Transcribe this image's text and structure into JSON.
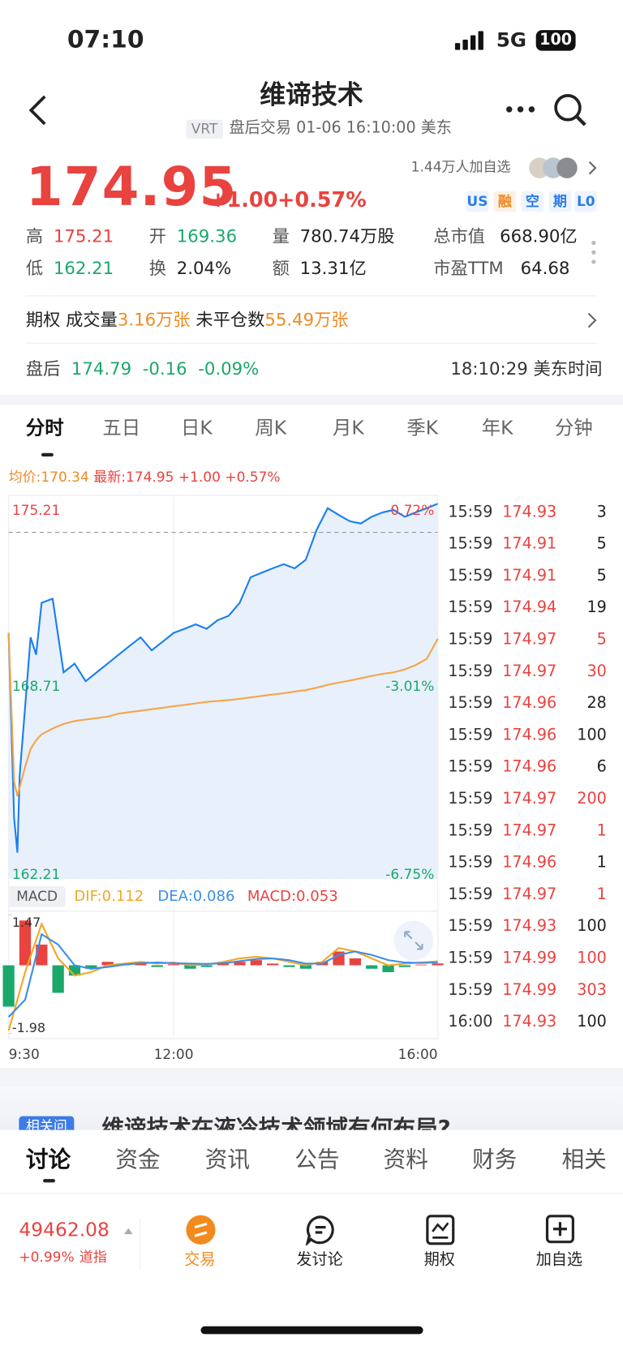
{
  "status": {
    "time": "07:10",
    "network": "5G",
    "battery": "100"
  },
  "header": {
    "title": "维谛技术",
    "ticker": "VRT",
    "subtitle": "盘后交易 01-06 16:10:00 美东"
  },
  "quote": {
    "price": "174.95",
    "change": "+1.00",
    "pct": "+0.57%",
    "watchers": "1.44万人加自选",
    "tags": [
      "US",
      "融",
      "空",
      "期",
      "L0"
    ]
  },
  "stats": [
    {
      "label": "高",
      "value": "175.21",
      "color": "#e8433f"
    },
    {
      "label": "开",
      "value": "169.36",
      "color": "#1aa86a"
    },
    {
      "label": "量",
      "value": "780.74万股",
      "color": "#222222"
    },
    {
      "label": "总市值",
      "value": "668.90亿",
      "color": "#222222"
    },
    {
      "label": "低",
      "value": "162.21",
      "color": "#1aa86a"
    },
    {
      "label": "换",
      "value": "2.04%",
      "color": "#222222"
    },
    {
      "label": "额",
      "value": "13.31亿",
      "color": "#222222"
    },
    {
      "label": "市盈TTM",
      "value": "64.68",
      "color": "#222222"
    }
  ],
  "options": {
    "label": "期权",
    "volume_label": "成交量",
    "volume": "3.16万张",
    "open_interest_label": "未平仓数",
    "open_interest": "55.49万张"
  },
  "after_hours": {
    "label": "盘后",
    "price": "174.79",
    "change": "-0.16",
    "pct": "-0.09%",
    "time": "18:10:29 美东时间"
  },
  "tabs": [
    "分时",
    "五日",
    "日K",
    "周K",
    "月K",
    "季K",
    "年K",
    "分钟"
  ],
  "chart_data": [
    {
      "type": "line",
      "header": {
        "avg": "均价:170.34",
        "latest": "最新:174.95",
        "change": "+1.00",
        "pct": "+0.57%"
      },
      "x": [
        0,
        5,
        8,
        10,
        15,
        20,
        25,
        30,
        40,
        50,
        60,
        70,
        80,
        90,
        100,
        110,
        120,
        130,
        140,
        150,
        160,
        170,
        180,
        190,
        200,
        210,
        220,
        230,
        240,
        250,
        260,
        270,
        280,
        290,
        300,
        310,
        320,
        330,
        340,
        350,
        360,
        370,
        380,
        390
      ],
      "xlim": [
        0,
        390
      ],
      "xticks": [
        {
          "value": 0,
          "label": "9:30"
        },
        {
          "value": 150,
          "label": "12:00"
        },
        {
          "value": 390,
          "label": "16:00"
        }
      ],
      "ylim": [
        162.21,
        175.21
      ],
      "yticks": [
        162.21,
        168.71,
        175.21
      ],
      "y2lim": [
        -6.75,
        0.72
      ],
      "y2ticks": [
        {
          "value": -6.75,
          "label": "-6.75%"
        },
        {
          "value": -3.01,
          "label": "-3.01%"
        },
        {
          "value": 0.72,
          "label": "0.72%"
        }
      ],
      "reference_line": 173.95,
      "grid": true,
      "series": [
        {
          "color": "#1a7ff0",
          "values": [
            170.54,
            164.26,
            163.09,
            165.7,
            168.05,
            170.39,
            169.8,
            171.56,
            171.7,
            169.2,
            169.5,
            168.9,
            169.2,
            169.5,
            169.8,
            170.1,
            170.39,
            169.95,
            170.24,
            170.54,
            170.68,
            170.83,
            170.68,
            170.97,
            171.12,
            171.56,
            172.43,
            172.58,
            172.73,
            172.87,
            172.73,
            173.02,
            174.04,
            174.77,
            174.54,
            174.33,
            174.25,
            174.48,
            174.63,
            174.71,
            174.48,
            174.63,
            174.77,
            174.92
          ]
        },
        {
          "color": "#f5a54a",
          "values": [
            170.54,
            165.5,
            165.0,
            165.3,
            166.0,
            166.6,
            166.9,
            167.1,
            167.3,
            167.45,
            167.55,
            167.6,
            167.65,
            167.7,
            167.8,
            167.85,
            167.9,
            167.95,
            168.0,
            168.05,
            168.1,
            168.15,
            168.2,
            168.23,
            168.26,
            168.3,
            168.35,
            168.4,
            168.45,
            168.49,
            168.55,
            168.6,
            168.68,
            168.78,
            168.85,
            168.92,
            169.0,
            169.08,
            169.15,
            169.2,
            169.3,
            169.45,
            169.66,
            170.34
          ]
        }
      ]
    },
    {
      "type": "macd",
      "header": {
        "label": "MACD",
        "dif": "DIF:0.112",
        "dea": "DEA:0.086",
        "macd": "MACD:0.053"
      },
      "x": [
        0,
        15,
        30,
        45,
        60,
        75,
        90,
        105,
        120,
        135,
        150,
        165,
        180,
        195,
        210,
        225,
        240,
        255,
        270,
        285,
        300,
        315,
        330,
        345,
        360,
        375,
        390
      ],
      "xlim": [
        0,
        390
      ],
      "ylim": [
        -1.98,
        1.47
      ],
      "yticks": [
        -1.98,
        1.47
      ],
      "bars": {
        "up_color": "#e8433f",
        "down_color": "#1aa86a",
        "values": [
          -1.2,
          1.3,
          0.6,
          -0.8,
          -0.3,
          -0.1,
          0.1,
          0.05,
          0.08,
          -0.05,
          0.03,
          -0.1,
          -0.05,
          0.05,
          0.1,
          0.15,
          0.05,
          -0.05,
          -0.1,
          0.1,
          0.4,
          0.2,
          -0.1,
          -0.2,
          -0.05,
          0.02,
          0.053
        ]
      },
      "series": [
        {
          "color": "#f5a623",
          "values": [
            -1.9,
            -0.2,
            1.2,
            0.2,
            -0.3,
            -0.2,
            0.0,
            0.05,
            0.1,
            0.05,
            0.08,
            0.0,
            0.02,
            0.1,
            0.2,
            0.25,
            0.2,
            0.1,
            0.0,
            0.1,
            0.5,
            0.4,
            0.2,
            0.0,
            0.05,
            0.08,
            0.112
          ]
        },
        {
          "color": "#3b8ee8",
          "values": [
            -1.5,
            -1.0,
            0.9,
            0.6,
            0.0,
            -0.1,
            -0.05,
            0.02,
            0.06,
            0.08,
            0.06,
            0.05,
            0.04,
            0.06,
            0.12,
            0.18,
            0.2,
            0.15,
            0.05,
            0.05,
            0.3,
            0.4,
            0.3,
            0.15,
            0.08,
            0.07,
            0.086
          ]
        }
      ]
    }
  ],
  "trades": [
    {
      "time": "15:59",
      "price": "174.93",
      "volume": "3",
      "color": "#222222"
    },
    {
      "time": "15:59",
      "price": "174.91",
      "volume": "5",
      "color": "#222222"
    },
    {
      "time": "15:59",
      "price": "174.91",
      "volume": "5",
      "color": "#222222"
    },
    {
      "time": "15:59",
      "price": "174.94",
      "volume": "19",
      "color": "#222222"
    },
    {
      "time": "15:59",
      "price": "174.97",
      "volume": "5",
      "color": "#e8433f"
    },
    {
      "time": "15:59",
      "price": "174.97",
      "volume": "30",
      "color": "#e8433f"
    },
    {
      "time": "15:59",
      "price": "174.96",
      "volume": "28",
      "color": "#222222"
    },
    {
      "time": "15:59",
      "price": "174.96",
      "volume": "100",
      "color": "#222222"
    },
    {
      "time": "15:59",
      "price": "174.96",
      "volume": "6",
      "color": "#222222"
    },
    {
      "time": "15:59",
      "price": "174.97",
      "volume": "200",
      "color": "#e8433f"
    },
    {
      "time": "15:59",
      "price": "174.97",
      "volume": "1",
      "color": "#e8433f"
    },
    {
      "time": "15:59",
      "price": "174.96",
      "volume": "1",
      "color": "#222222"
    },
    {
      "time": "15:59",
      "price": "174.97",
      "volume": "1",
      "color": "#e8433f"
    },
    {
      "time": "15:59",
      "price": "174.93",
      "volume": "100",
      "color": "#222222"
    },
    {
      "time": "15:59",
      "price": "174.99",
      "volume": "100",
      "color": "#e8433f"
    },
    {
      "time": "15:59",
      "price": "174.99",
      "volume": "303",
      "color": "#e8433f"
    },
    {
      "time": "16:00",
      "price": "174.93",
      "volume": "100",
      "color": "#222222"
    }
  ],
  "news": {
    "tag": "相关问",
    "text": "维谛技术在液冷技术领域有何布局?"
  },
  "bottom_tabs": [
    "讨论",
    "资金",
    "资讯",
    "公告",
    "资料",
    "财务",
    "相关"
  ],
  "bottom_bar": {
    "index_value": "49462.08",
    "index_change": "+0.99%",
    "index_name": "道指",
    "buttons": [
      "交易",
      "发讨论",
      "期权",
      "加自选"
    ]
  }
}
